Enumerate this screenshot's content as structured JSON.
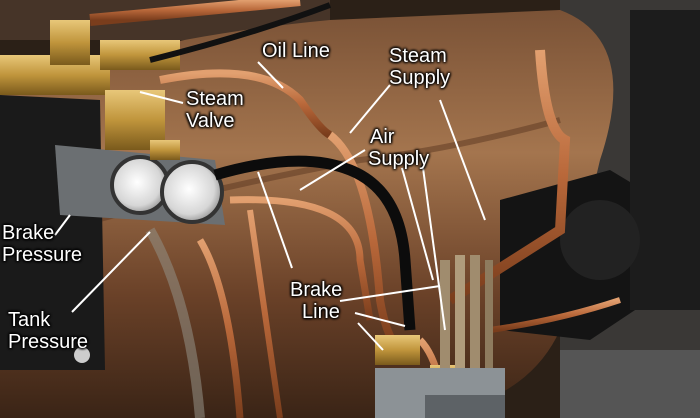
{
  "labels": {
    "oil_line": "Oil Line",
    "steam_supply_1": "Steam",
    "steam_supply_2": "Supply",
    "steam_valve_1": "Steam",
    "steam_valve_2": "Valve",
    "air_supply_1": "Air",
    "air_supply_2": "Supply",
    "brake_pressure_1": "Brake",
    "brake_pressure_2": "Pressure",
    "tank_pressure_1": "Tank",
    "tank_pressure_2": "Pressure",
    "brake_line_1": "Brake",
    "brake_line_2": "Line"
  }
}
